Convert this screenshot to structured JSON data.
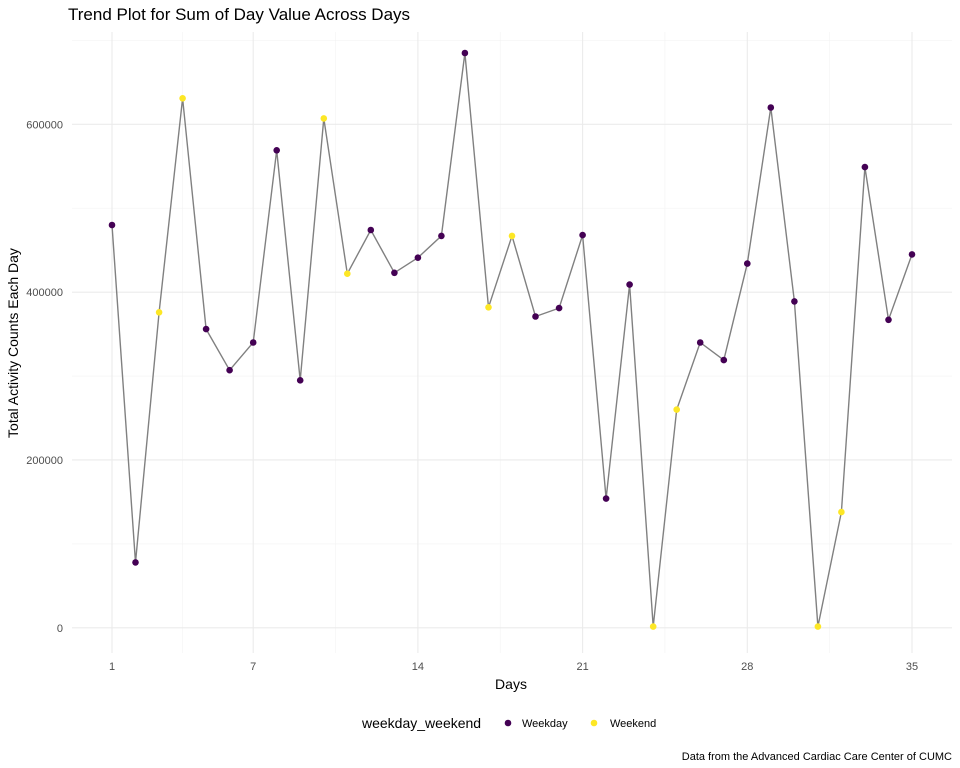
{
  "chart_data": {
    "type": "line",
    "title": "Trend Plot for Sum of Day Value Across Days",
    "xlabel": "Days",
    "ylabel": "Total Activity Counts Each Day",
    "caption": "Data from the Advanced Cardiac Care Center of CUMC",
    "xlim": [
      -0.7,
      36.7
    ],
    "ylim": [
      -30000,
      710000
    ],
    "x_ticks": [
      1,
      7,
      14,
      21,
      28,
      35
    ],
    "x_minor_ticks": [
      4,
      10.5,
      17.5,
      24.5,
      31.5
    ],
    "y_ticks": [
      0,
      200000,
      400000,
      600000
    ],
    "y_tick_labels": [
      "0",
      "200000",
      "400000",
      "600000"
    ],
    "y_minor_ticks": [
      100000,
      300000,
      500000,
      700000
    ],
    "grid": true,
    "legend": {
      "title": "weekday_weekend",
      "position": "bottom",
      "entries": [
        {
          "label": "Weekday",
          "color": "#440154"
        },
        {
          "label": "Weekend",
          "color": "#fde725"
        }
      ]
    },
    "line_color": "#808080",
    "series": [
      {
        "x": [
          1,
          2,
          3,
          4,
          5,
          6,
          7,
          8,
          9,
          10,
          11,
          12,
          13,
          14,
          15,
          16,
          17,
          18,
          19,
          20,
          21,
          22,
          23,
          24,
          25,
          26,
          27,
          28,
          29,
          30,
          31,
          32,
          33,
          34,
          35
        ],
        "values": [
          480000,
          78000,
          376000,
          631000,
          356000,
          307000,
          340000,
          569000,
          295000,
          607000,
          422000,
          474000,
          423000,
          441000,
          467000,
          685000,
          382000,
          467000,
          371000,
          381000,
          468000,
          154000,
          409000,
          1440,
          260000,
          340000,
          319000,
          434000,
          620000,
          389000,
          1440,
          138000,
          549000,
          367000,
          445000
        ],
        "groups": [
          "Weekday",
          "Weekday",
          "Weekend",
          "Weekend",
          "Weekday",
          "Weekday",
          "Weekday",
          "Weekday",
          "Weekday",
          "Weekend",
          "Weekend",
          "Weekday",
          "Weekday",
          "Weekday",
          "Weekday",
          "Weekday",
          "Weekend",
          "Weekend",
          "Weekday",
          "Weekday",
          "Weekday",
          "Weekday",
          "Weekday",
          "Weekend",
          "Weekend",
          "Weekday",
          "Weekday",
          "Weekday",
          "Weekday",
          "Weekday",
          "Weekend",
          "Weekend",
          "Weekday",
          "Weekday",
          "Weekday"
        ]
      }
    ]
  }
}
